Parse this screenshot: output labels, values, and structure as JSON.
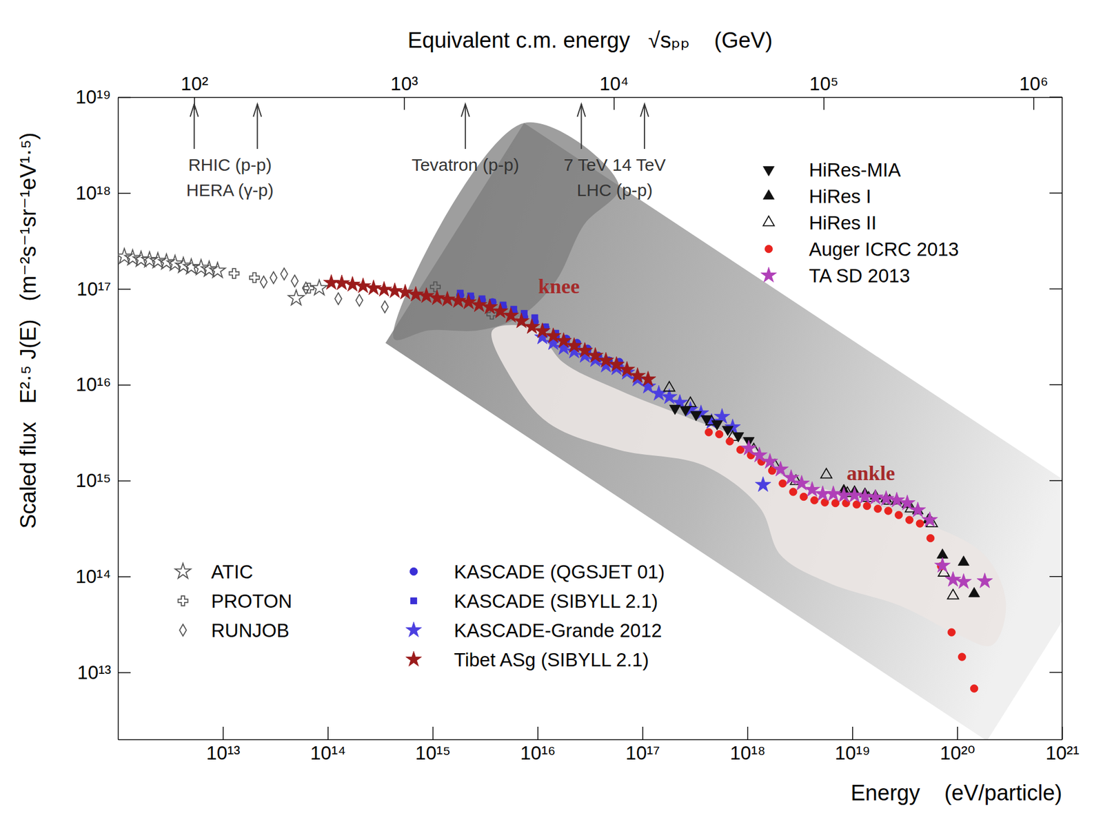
{
  "chart_data": {
    "type": "scatter",
    "log": true,
    "x_label": "Energy    (eV/particle)",
    "y_label": "Scaled flux   E²·⁵ J(E)   (m⁻²s⁻¹sr⁻¹eV¹·⁵)",
    "x2_label": "Equivalent c.m. energy   √sₚₚ    (GeV)",
    "xlim": [
      1000000000000.0,
      1e+21
    ],
    "xticks": [
      {
        "value": 10000000000000.0,
        "label": "10¹³"
      },
      {
        "value": 100000000000000.0,
        "label": "10¹⁴"
      },
      {
        "value": 1000000000000000.0,
        "label": "10¹⁵"
      },
      {
        "value": 1e+16,
        "label": "10¹⁶"
      },
      {
        "value": 1e+17,
        "label": "10¹⁷"
      },
      {
        "value": 1e+18,
        "label": "10¹⁸"
      },
      {
        "value": 1e+19,
        "label": "10¹⁹"
      },
      {
        "value": 1e+20,
        "label": "10²⁰"
      },
      {
        "value": 1e+21,
        "label": "10²¹"
      }
    ],
    "ylim": [
      2000000000000.0,
      1e+19
    ],
    "yticks": [
      {
        "value": 10000000000000.0,
        "label": "10¹³"
      },
      {
        "value": 100000000000000.0,
        "label": "10¹⁴"
      },
      {
        "value": 1000000000000000.0,
        "label": "10¹⁵"
      },
      {
        "value": 1e+16,
        "label": "10¹⁶"
      },
      {
        "value": 1e+17,
        "label": "10¹⁷"
      },
      {
        "value": 1e+18,
        "label": "10¹⁸"
      },
      {
        "value": 1e+19,
        "label": "10¹⁹"
      }
    ],
    "x2lim": [
      43.3,
      1370000
    ],
    "x2ticks": [
      {
        "value": 100,
        "label": "10²"
      },
      {
        "value": 1000,
        "label": "10³"
      },
      {
        "value": 10000,
        "label": "10⁴"
      },
      {
        "value": 100000,
        "label": "10⁵"
      },
      {
        "value": 1000000,
        "label": "10⁶"
      }
    ],
    "accelerators": {
      "arrows": [
        100,
        200,
        1960,
        7000,
        14000
      ],
      "labels": [
        {
          "x": 148,
          "lines": [
            "RHIC (p-p)",
            "HERA (γ-p)"
          ]
        },
        {
          "x": 1960,
          "lines": [
            "Tevatron (p-p)"
          ]
        },
        {
          "x": 10100,
          "lines": [
            "7 TeV 14 TeV",
            "LHC (p-p)"
          ]
        }
      ]
    },
    "annotations": [
      {
        "text": "knee",
        "x": 1.6e+16,
        "y": 1.07e+17,
        "color": "#a52a2a"
      },
      {
        "text": "ankle",
        "x": 1.5e+19,
        "y": 1200000000000000.0,
        "color": "#a52a2a"
      }
    ],
    "series": [
      {
        "name": "ATIC",
        "color": "#555555",
        "marker": "open-star",
        "x": [
          1150000000000.0,
          1380000000000.0,
          1660000000000.0,
          2000000000000.0,
          2400000000000.0,
          2900000000000.0,
          3500000000000.0,
          4200000000000.0,
          5000000000000.0,
          6200000000000.0,
          7400000000000.0,
          8900000000000.0,
          50000000000000.0,
          83000000000000.0
        ],
        "values": [
          2.17e+17,
          2.1e+17,
          2.03e+17,
          2e+17,
          1.96e+17,
          1.9e+17,
          1.84e+17,
          1.75e+17,
          1.69e+17,
          1.66e+17,
          1.6e+17,
          1.55e+17,
          8e+16,
          1.02e+17
        ]
      },
      {
        "name": "PROTON",
        "color": "#555555",
        "marker": "open-cross",
        "x": [
          12800000000000.0,
          20000000000000.0,
          66000000000000.0,
          1060000000000000.0,
          3660000000000000.0
        ],
        "values": [
          1.45e+17,
          1.31e+17,
          1.02e+17,
          1.05e+17,
          5.45e+16
        ]
      },
      {
        "name": "RUNJOB",
        "color": "#555555",
        "marker": "open-diamond",
        "x": [
          24500000000000.0,
          30400000000000.0,
          38400000000000.0,
          48400000000000.0,
          61900000000000.0,
          126000000000000.0,
          200000000000000.0,
          350000000000000.0
        ],
        "values": [
          1.18e+17,
          1.31e+17,
          1.43e+17,
          1.21e+17,
          1.02e+17,
          7.9e+16,
          7.6e+16,
          6.5e+16
        ]
      },
      {
        "name": "KASCADE (QGSJET 01)",
        "color": "#3a2fd6",
        "marker": "circle",
        "x": [
          1830000000000000.0,
          2300000000000000.0,
          2950000000000000.0,
          3720000000000000.0,
          4690000000000000.0,
          5920000000000000.0,
          7450000000000000.0,
          9400000000000000.0,
          1.19e+16,
          1.49e+16,
          1.88e+16,
          2.38e+16,
          3e+16,
          3.78e+16,
          4.76e+16,
          6.01e+16
        ],
        "values": [
          8.59e+16,
          8.17e+16,
          7.64e+16,
          7.26e+16,
          6.46e+16,
          5.73e+16,
          5.09e+16,
          4.53e+16,
          3.95e+16,
          3.18e+16,
          3.02e+16,
          2.73e+16,
          2.38e+16,
          2.01e+16,
          1.79e+16,
          1.73e+16
        ]
      },
      {
        "name": "KASCADE (SIBYLL 2.1)",
        "color": "#3a2fd6",
        "marker": "square",
        "x": [
          1830000000000000.0,
          2300000000000000.0,
          2950000000000000.0,
          3720000000000000.0,
          4690000000000000.0,
          5920000000000000.0,
          7450000000000000.0,
          9400000000000000.0,
          1.19e+16,
          1.49e+16,
          1.88e+16,
          2.38e+16,
          3e+16,
          3.78e+16,
          4.76e+16,
          6.01e+16
        ],
        "values": [
          9.04e+16,
          8.45e+16,
          7.89e+16,
          7.26e+16,
          6.79e+16,
          6.14e+16,
          5.55e+16,
          5.01e+16,
          4.02e+16,
          3.45e+16,
          2.97e+16,
          2.64e+16,
          2.23e+16,
          1.88e+16,
          1.79e+16,
          1.59e+16
        ]
      },
      {
        "name": "KASCADE-Grande 2012",
        "color": "#4b3fe0",
        "marker": "star",
        "x": [
          1.11e+16,
          1.41e+16,
          1.77e+16,
          2.23e+16,
          2.82e+16,
          3.55e+16,
          4.48e+16,
          5.65e+16,
          7.11e+16,
          8.97e+16,
          1.13e+17,
          1.43e+17,
          1.8e+17,
          2.27e+17,
          2.86e+17,
          3.61e+17,
          4.55e+17,
          5.73e+17,
          7.23e+17,
          1.41e+18
        ],
        "values": [
          3.13e+16,
          2.73e+16,
          2.43e+16,
          2.23e+16,
          2.01e+16,
          1.82e+16,
          1.59e+16,
          1.49e+16,
          1.34e+16,
          1.14e+16,
          9590000000000000.0,
          8100000000000000.0,
          7450000000000000.0,
          6510000000000000.0,
          5500000000000000.0,
          5050000000000000.0,
          4120000000000000.0,
          4640000000000000.0,
          3610000000000000.0,
          904000000000000.0
        ]
      },
      {
        "name": "Tibet ASg (SIBYLL 2.1)",
        "color": "#9b1b1b",
        "marker": "star",
        "x": [
          108000000000000.0,
          136000000000000.0,
          172000000000000.0,
          217000000000000.0,
          273000000000000.0,
          344000000000000.0,
          435000000000000.0,
          547000000000000.0,
          690000000000000.0,
          871000000000000.0,
          1100000000000000.0,
          1380000000000000.0,
          1750000000000000.0,
          2200000000000000.0,
          2770000000000000.0,
          3500000000000000.0,
          4410000000000000.0,
          5560000000000000.0,
          7010000000000000.0,
          8830000000000000.0,
          1.11e+16,
          1.41e+16,
          1.77e+16,
          2.23e+16,
          2.82e+16,
          3.55e+16,
          4.48e+16,
          5.65e+16,
          7.11e+16,
          8.97e+16,
          1.13e+17
        ],
        "values": [
          1.16e+17,
          1.15e+17,
          1.11e+17,
          1.07e+17,
          1.02e+17,
          9.84e+16,
          9.51e+16,
          9.19e+16,
          8.74e+16,
          8.45e+16,
          8.03e+16,
          7.77e+16,
          7.51e+16,
          7.26e+16,
          6.79e+16,
          6.46e+16,
          5.84e+16,
          5.27e+16,
          4.61e+16,
          4.02e+16,
          3.63e+16,
          3.23e+16,
          2.87e+16,
          2.55e+16,
          2.27e+16,
          2.01e+16,
          1.79e+16,
          1.62e+16,
          1.44e+16,
          1.24e+16,
          1.14e+16
        ]
      },
      {
        "name": "HiRes-MIA",
        "color": "#111111",
        "marker": "triangle-down",
        "x": [
          2.04e+17,
          2.57e+17,
          3.24e+17,
          4.08e+17,
          5.14e+17,
          6.49e+17,
          8.18e+17,
          1.03e+18
        ],
        "values": [
          5690000000000000.0,
          5500000000000000.0,
          4890000000000000.0,
          4420000000000000.0,
          3920000000000000.0,
          3430000000000000.0,
          2940000000000000.0,
          2620000000000000.0
        ]
      },
      {
        "name": "HiRes I",
        "color": "#111111",
        "marker": "triangle-up",
        "x": [
          8.3e+18,
          1.05e+19,
          1.32e+19,
          1.66e+19,
          2.1e+19,
          2.65e+19,
          3.34e+19,
          4.21e+19,
          5.31e+19,
          7.23e+19,
          1.15e+20,
          1.45e+20
        ],
        "values": [
          789000000000000.0,
          764000000000000.0,
          726000000000000.0,
          690000000000000.0,
          646000000000000.0,
          614000000000000.0,
          564000000000000.0,
          484000000000000.0,
          389000000000000.0,
          167000000000000.0,
          141000000000000.0,
          66200000000000.0
        ]
      },
      {
        "name": "HiRes II",
        "color": "#111111",
        "marker": "open-triangle-up",
        "x": [
          1.8e+17,
          2.86e+17,
          4.55e+17,
          7.23e+17,
          1.15e+18,
          1.83e+18,
          2.9e+18,
          5.65e+18,
          8.97e+18,
          1.43e+19,
          2.27e+19,
          3.61e+19,
          5.73e+19,
          7.45e+19,
          9.12e+19
        ],
        "values": [
          9270000000000000.0,
          6400000000000000.0,
          4120000000000000.0,
          2840000000000000.0,
          2100000000000000.0,
          1430000000000000.0,
          984000000000000.0,
          1150000000000000.0,
          738000000000000.0,
          656000000000000.0,
          614000000000000.0,
          509000000000000.0,
          357000000000000.0,
          109000000000000.0,
          63000000000000.0
        ]
      },
      {
        "name": "Auger ICRC 2013",
        "color": "#e8231f",
        "marker": "circle",
        "x": [
          4.28e+17,
          5.39e+17,
          6.79e+17,
          8.57e+17,
          1.08e+18,
          1.36e+18,
          1.72e+18,
          2.17e+18,
          2.73e+18,
          3.44e+18,
          4.35e+18,
          5.47e+18,
          6.9e+18,
          8.71e+18,
          1.1e+19,
          1.38e+19,
          1.75e+19,
          2.2e+19,
          2.77e+19,
          3.5e+19,
          4.41e+19,
          5.56e+19,
          7.01e+19,
          8.83e+19,
          1.11e+20,
          1.45e+20
        ],
        "values": [
          3200000000000000.0,
          3050000000000000.0,
          2570000000000000.0,
          2100000000000000.0,
          1840000000000000.0,
          1580000000000000.0,
          1270000000000000.0,
          935000000000000.0,
          764000000000000.0,
          679000000000000.0,
          624000000000000.0,
          593000000000000.0,
          583000000000000.0,
          583000000000000.0,
          564000000000000.0,
          545000000000000.0,
          509000000000000.0,
          484000000000000.0,
          438000000000000.0,
          389000000000000.0,
          357000000000000.0,
          251000000000000.0,
          128000000000000.0,
          26200000000000.0,
          14500000000000.0,
          6790000000000.0
        ]
      },
      {
        "name": "TA SD 2013",
        "color": "#b040b8",
        "marker": "star",
        "x": [
          1.03e+18,
          1.3e+18,
          1.64e+18,
          2.07e+18,
          2.61e+18,
          3.29e+18,
          4.14e+18,
          5.22e+18,
          6.59e+18,
          8.3e+18,
          1.05e+19,
          1.32e+19,
          1.66e+19,
          2.1e+19,
          2.65e+19,
          3.34e+19,
          4.21e+19,
          5.47e+19,
          7.23e+19,
          9.12e+19,
          1.15e+20,
          1.83e+20
        ],
        "values": [
          2170000000000000.0,
          1840000000000000.0,
          1580000000000000.0,
          1310000000000000.0,
          1070000000000000.0,
          935000000000000.0,
          804000000000000.0,
          726000000000000.0,
          726000000000000.0,
          702000000000000.0,
          702000000000000.0,
          679000000000000.0,
          667000000000000.0,
          646000000000000.0,
          624000000000000.0,
          583000000000000.0,
          492000000000000.0,
          389000000000000.0,
          130000000000000.0,
          92700000000000.0,
          88100000000000.0,
          89500000000000.0
        ]
      }
    ]
  }
}
